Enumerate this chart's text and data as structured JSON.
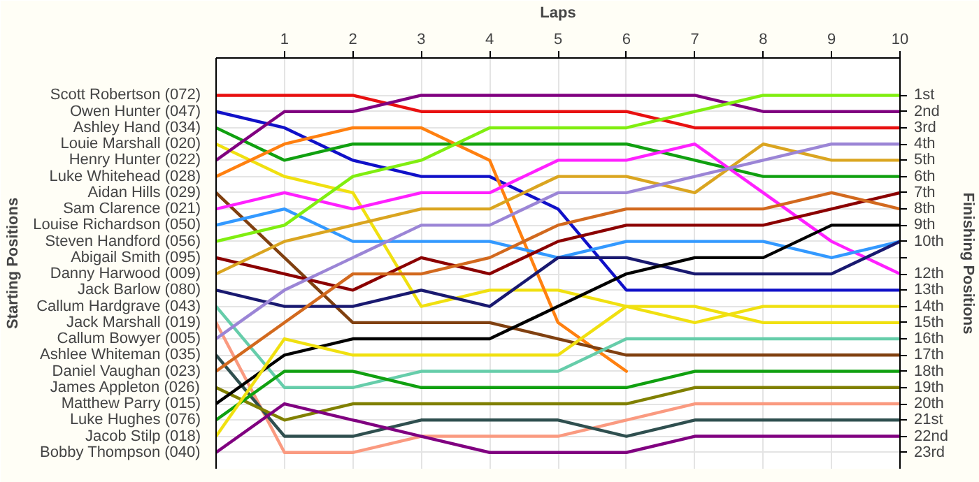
{
  "chart_data": {
    "type": "line",
    "xlabel": "Laps",
    "ylabel": "Finishing Positions",
    "annotations": [
      "Starting Positions"
    ],
    "x": [
      0,
      1,
      2,
      3,
      4,
      5,
      6,
      7,
      8,
      9,
      10
    ],
    "xlim": [
      0,
      10
    ],
    "xticks": [
      1,
      2,
      3,
      4,
      5,
      6,
      7,
      8,
      9,
      10
    ],
    "ylim": [
      24,
      -1.3
    ],
    "yticks": [
      {
        "value": 1,
        "label": "1st"
      },
      {
        "value": 2,
        "label": "2nd"
      },
      {
        "value": 3,
        "label": "3rd"
      },
      {
        "value": 4,
        "label": "4th"
      },
      {
        "value": 5,
        "label": "5th"
      },
      {
        "value": 6,
        "label": "6th"
      },
      {
        "value": 7,
        "label": "7th"
      },
      {
        "value": 8,
        "label": "8th"
      },
      {
        "value": 9,
        "label": "9th"
      },
      {
        "value": 10,
        "label": "10th"
      },
      {
        "value": 11,
        "label": null
      },
      {
        "value": 12,
        "label": "12th"
      },
      {
        "value": 13,
        "label": "13th"
      },
      {
        "value": 14,
        "label": "14th"
      },
      {
        "value": 15,
        "label": "15th"
      },
      {
        "value": 16,
        "label": "16th"
      },
      {
        "value": 17,
        "label": "17th"
      },
      {
        "value": 18,
        "label": "18th"
      },
      {
        "value": 19,
        "label": "19th"
      },
      {
        "value": 20,
        "label": "20th"
      },
      {
        "value": 21,
        "label": "21st"
      },
      {
        "value": 22,
        "label": "22nd"
      },
      {
        "value": 23,
        "label": "23rd"
      }
    ],
    "grid": true,
    "line_style": "solid",
    "legend": "left",
    "series": [
      {
        "name": "Scott Robertson (072)",
        "color": "#e81010",
        "values": [
          1,
          1,
          1,
          2,
          2,
          2,
          2,
          3,
          3,
          3,
          3
        ]
      },
      {
        "name": "Owen Hunter (047)",
        "color": "#1010c8",
        "values": [
          2,
          3,
          5,
          6,
          6,
          8,
          13,
          13,
          13,
          13,
          13
        ]
      },
      {
        "name": "Ashley Hand (034)",
        "color": "#10a010",
        "values": [
          3,
          5,
          4,
          4,
          4,
          4,
          4,
          5,
          6,
          6,
          6
        ]
      },
      {
        "name": "Louie Marshall (020)",
        "color": "#f0e010",
        "values": [
          4,
          6,
          7,
          14,
          13,
          13,
          14,
          15,
          14,
          14,
          14
        ]
      },
      {
        "name": "Henry Hunter (022)",
        "color": "#800080",
        "values": [
          5,
          2,
          2,
          1,
          1,
          1,
          1,
          1,
          2,
          2,
          2
        ]
      },
      {
        "name": "Luke Whitehead (028)",
        "color": "#ff8010",
        "values": [
          6,
          4,
          3,
          3,
          5,
          15,
          18,
          null,
          null,
          null,
          null
        ]
      },
      {
        "name": "Aidan Hills (029)",
        "color": "#804010",
        "values": [
          7,
          11,
          15,
          15,
          15,
          16,
          17,
          17,
          17,
          17,
          17
        ]
      },
      {
        "name": "Sam Clarence (021)",
        "color": "#ff20ff",
        "values": [
          8,
          7,
          8,
          7,
          7,
          5,
          5,
          4,
          7,
          10,
          12
        ]
      },
      {
        "name": "Louise Richardson (050)",
        "color": "#3399ff",
        "values": [
          9,
          8,
          10,
          10,
          10,
          11,
          10,
          10,
          10,
          11,
          10
        ]
      },
      {
        "name": "Steven Handford (056)",
        "color": "#80ee10",
        "values": [
          10,
          9,
          6,
          5,
          3,
          3,
          3,
          2,
          1,
          1,
          1
        ]
      },
      {
        "name": "Abigail Smith (095)",
        "color": "#8b0000",
        "values": [
          11,
          12,
          13,
          11,
          12,
          10,
          9,
          9,
          9,
          8,
          7
        ]
      },
      {
        "name": "Danny Harwood (009)",
        "color": "#daa520",
        "values": [
          12,
          10,
          9,
          8,
          8,
          6,
          6,
          7,
          4,
          5,
          5
        ]
      },
      {
        "name": "Jack Barlow (080)",
        "color": "#191970",
        "values": [
          13,
          14,
          14,
          13,
          14,
          11,
          11,
          12,
          12,
          12,
          10
        ]
      },
      {
        "name": "Callum Hardgrave (043)",
        "color": "#66cdaa",
        "values": [
          14,
          19,
          19,
          18,
          18,
          18,
          16,
          16,
          16,
          16,
          16
        ]
      },
      {
        "name": "Jack Marshall (019)",
        "color": "#fa9a80",
        "values": [
          15,
          23,
          23,
          22,
          22,
          22,
          21,
          20,
          20,
          20,
          20
        ]
      },
      {
        "name": "Callum Bowyer (005)",
        "color": "#9b85d6",
        "values": [
          16,
          13,
          11,
          9,
          9,
          7,
          7,
          6,
          5,
          4,
          4
        ]
      },
      {
        "name": "Ashlee Whiteman (035)",
        "color": "#2f4f4f",
        "values": [
          17,
          22,
          22,
          21,
          21,
          21,
          22,
          21,
          21,
          21,
          21
        ]
      },
      {
        "name": "Daniel Vaughan (023)",
        "color": "#d2691e",
        "values": [
          18,
          15,
          12,
          12,
          11,
          9,
          8,
          8,
          8,
          7,
          8
        ]
      },
      {
        "name": "James Appleton (026)",
        "color": "#808000",
        "values": [
          19,
          21,
          20,
          20,
          20,
          20,
          20,
          19,
          19,
          19,
          19
        ]
      },
      {
        "name": "Matthew Parry (015)",
        "color": "#000000",
        "values": [
          20,
          17,
          16,
          16,
          16,
          14,
          12,
          11,
          11,
          9,
          9
        ]
      },
      {
        "name": "Luke Hughes (076)",
        "color": "#10a010",
        "values": [
          21,
          18,
          18,
          19,
          19,
          19,
          19,
          18,
          18,
          18,
          18
        ]
      },
      {
        "name": "Jacob Stilp (018)",
        "color": "#f0e010",
        "values": [
          22,
          16,
          17,
          17,
          17,
          17,
          14,
          14,
          15,
          15,
          15
        ]
      },
      {
        "name": "Bobby Thompson (040)",
        "color": "#800080",
        "values": [
          23,
          20,
          21,
          22,
          23,
          23,
          23,
          22,
          22,
          22,
          22
        ]
      }
    ]
  }
}
